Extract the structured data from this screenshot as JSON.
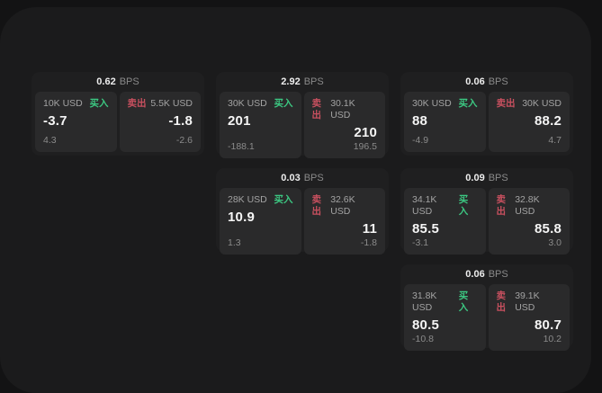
{
  "labels": {
    "bps_unit": "BPS",
    "buy": "买入",
    "sell": "卖出"
  },
  "colors": {
    "background": "#131314",
    "surface": "#1b1b1c",
    "card": "#1f1f20",
    "panel": "#2a2a2b",
    "buy_accent": "#3cc882",
    "sell_accent": "#c8505f"
  },
  "cards": [
    {
      "bps": "0.62",
      "buy": {
        "amount": "10K USD",
        "price": "-3.7",
        "delta": "4.3"
      },
      "sell": {
        "amount": "5.5K USD",
        "price": "-1.8",
        "delta": "-2.6"
      }
    },
    {
      "bps": "2.92",
      "buy": {
        "amount": "30K USD",
        "price": "201",
        "delta": "-188.1"
      },
      "sell": {
        "amount": "30.1K USD",
        "price": "210",
        "delta": "196.5"
      }
    },
    {
      "bps": "0.06",
      "buy": {
        "amount": "30K USD",
        "price": "88",
        "delta": "-4.9"
      },
      "sell": {
        "amount": "30K USD",
        "price": "88.2",
        "delta": "4.7"
      }
    },
    {
      "bps": "0.03",
      "buy": {
        "amount": "28K USD",
        "price": "10.9",
        "delta": "1.3"
      },
      "sell": {
        "amount": "32.6K USD",
        "price": "11",
        "delta": "-1.8"
      }
    },
    {
      "bps": "0.09",
      "buy": {
        "amount": "34.1K USD",
        "price": "85.5",
        "delta": "-3.1"
      },
      "sell": {
        "amount": "32.8K USD",
        "price": "85.8",
        "delta": "3.0"
      }
    },
    {
      "bps": "0.06",
      "buy": {
        "amount": "31.8K USD",
        "price": "80.5",
        "delta": "-10.8"
      },
      "sell": {
        "amount": "39.1K USD",
        "price": "80.7",
        "delta": "10.2"
      }
    }
  ]
}
